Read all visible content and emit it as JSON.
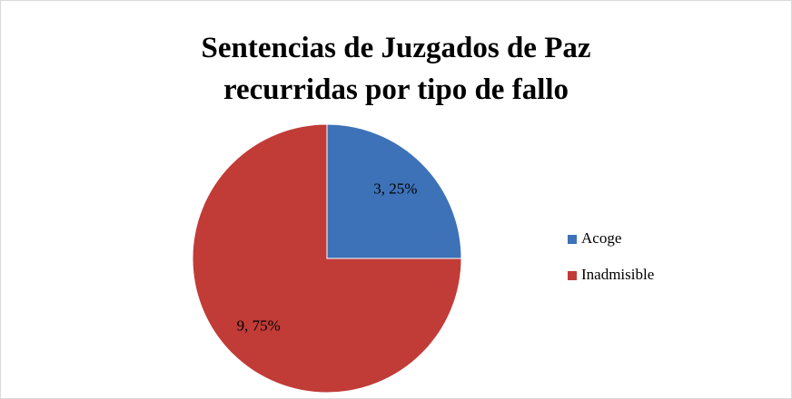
{
  "chart_data": {
    "type": "pie",
    "title": "Sentencias de Juzgados de Paz recurridas por tipo de fallo",
    "categories": [
      "Acoge",
      "Inadmisible"
    ],
    "values": [
      3,
      9
    ],
    "value_labels": [
      "3, 25%",
      "9, 75%"
    ],
    "colors": [
      "#3d72b8",
      "#c13b37"
    ],
    "legend": "right"
  }
}
